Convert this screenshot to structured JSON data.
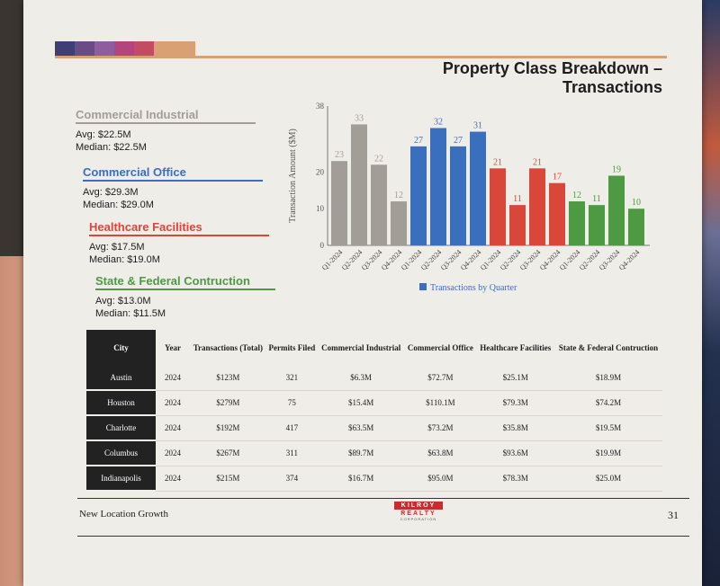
{
  "page_title": "Property Class Breakdown – Transactions",
  "colors": {
    "stripe": [
      "#3d3f76",
      "#6a4a87",
      "#8d5da0",
      "#b3447d",
      "#c24d60",
      "#d9a173"
    ],
    "accent_rule": "#d9a173",
    "industrial": "#a29d97",
    "office": "#3a6fbd",
    "healthcare": "#d9463a",
    "state": "#4d9a43"
  },
  "categories": [
    {
      "key": "industrial",
      "name": "Commercial Industrial",
      "avg": "Avg: $22.5M",
      "median": "Median: $22.5M"
    },
    {
      "key": "office",
      "name": "Commercial Office",
      "avg": "Avg: $29.3M",
      "median": "Median: $29.0M"
    },
    {
      "key": "healthcare",
      "name": "Healthcare Facilities",
      "avg": "Avg: $17.5M",
      "median": "Median: $19.0M"
    },
    {
      "key": "state",
      "name": "State & Federal Contruction",
      "avg": "Avg: $13.0M",
      "median": "Median: $11.5M"
    }
  ],
  "chart_data": {
    "type": "bar",
    "title": "",
    "ylabel": "Transaction Amount ($M)",
    "xlabel": "",
    "ylim": [
      0,
      38
    ],
    "yticks": [
      "0",
      "10",
      "20",
      "38"
    ],
    "legend": "Transactions by Quarter",
    "legend_placement": "bottom",
    "categories": [
      "Q1-2024",
      "Q2-2024",
      "Q3-2024",
      "Q4-2024",
      "Q1-2024",
      "Q2-2024",
      "Q3-2024",
      "Q4-2024",
      "Q1-2024",
      "Q2-2024",
      "Q3-2024",
      "Q4-2024",
      "Q1-2024",
      "Q2-2024",
      "Q3-2024",
      "Q4-2024"
    ],
    "values": [
      23,
      33,
      22,
      12,
      27,
      32,
      27,
      31,
      21,
      11,
      21,
      17,
      12,
      11,
      19,
      10
    ],
    "groups": [
      "industrial",
      "industrial",
      "industrial",
      "industrial",
      "office",
      "office",
      "office",
      "office",
      "healthcare",
      "healthcare",
      "healthcare",
      "healthcare",
      "state",
      "state",
      "state",
      "state"
    ]
  },
  "table": {
    "headers": [
      "City",
      "Year",
      "Transactions (Total)",
      "Permits Filed",
      "Commercial Industrial",
      "Commercial Office",
      "Healthcare Facilities",
      "State & Federal Contruction"
    ],
    "rows": [
      [
        "Austin",
        "2024",
        "$123M",
        "321",
        "$6.3M",
        "$72.7M",
        "$25.1M",
        "$18.9M"
      ],
      [
        "Houston",
        "2024",
        "$279M",
        "75",
        "$15.4M",
        "$110.1M",
        "$79.3M",
        "$74.2M"
      ],
      [
        "Charlotte",
        "2024",
        "$192M",
        "417",
        "$63.5M",
        "$73.2M",
        "$35.8M",
        "$19.5M"
      ],
      [
        "Columbus",
        "2024",
        "$267M",
        "311",
        "$89.7M",
        "$63.8M",
        "$93.6M",
        "$19.9M"
      ],
      [
        "Indianapolis",
        "2024",
        "$215M",
        "374",
        "$16.7M",
        "$95.0M",
        "$78.3M",
        "$25.0M"
      ]
    ]
  },
  "footer": {
    "left": "New Location Growth",
    "page_number": "31",
    "logo_top": "KILROY",
    "logo_mid": "REALTY",
    "logo_bottom": "CORPORATION"
  }
}
